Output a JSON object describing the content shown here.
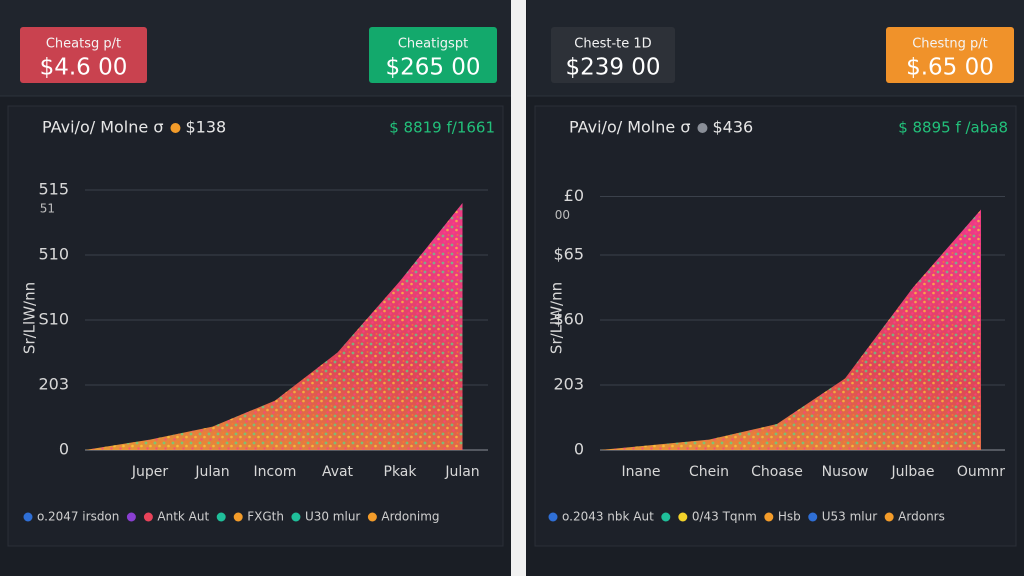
{
  "panels": [
    {
      "cards": [
        {
          "label": "Cheatsg p/t",
          "value": "$4.6 00",
          "color": "#c9424f"
        },
        {
          "label": "Cheatigspt",
          "value": "$265 00",
          "color": "#13a96c"
        }
      ],
      "summary": {
        "label": "PAvi/o/ Molne σ",
        "dot_color": "#f39c2a",
        "value": "$138",
        "right": "$ 8819 f/1661",
        "right_color": "#22c07a"
      }
    },
    {
      "cards": [
        {
          "label": "Chest-te 1D",
          "value": "$239 00",
          "color": "#2d3138"
        },
        {
          "label": "Chestng p/t",
          "value": "$.65 00",
          "color": "#f0922a"
        }
      ],
      "summary": {
        "label": "PAvi/o/ Molne σ",
        "dot_color": "#8a8f98",
        "value": "$436",
        "right": "$ 8895 f /aba8",
        "right_color": "#22c07a"
      }
    }
  ],
  "chart_data": [
    {
      "type": "area",
      "y_label": "Sr/LlW/nn",
      "categories": [
        "Juper",
        "Julan",
        "Incom",
        "Avat",
        "Pkak",
        "Julan"
      ],
      "values": [
        8,
        18,
        38,
        75,
        130,
        190
      ],
      "color": "#ef4a5a",
      "ylim": [
        0,
        225
      ],
      "yticks": [
        0,
        {
          "value": 50,
          "label": "203"
        },
        {
          "value": 100,
          "label": "S10"
        },
        {
          "value": 150,
          "label": "510"
        },
        {
          "value": 200,
          "label": "515"
        }
      ],
      "ytick_note": "51",
      "grid": true,
      "legend": [
        {
          "name": "o.2047 irsdon",
          "color": "#2f6fd6"
        },
        {
          "color": "#8a3fd1"
        },
        {
          "name": "Antk  Aut",
          "color": "#e8435a"
        },
        {
          "color": "#1fbf9a"
        },
        {
          "name": "FXGth",
          "color": "#f39c2a"
        },
        {
          "name": "U30 mlur",
          "color": "#1fbf9a"
        },
        {
          "name": "Ardonimg",
          "color": "#f39c2a"
        }
      ]
    },
    {
      "type": "area",
      "y_label": "Sr/LlW/nn",
      "categories": [
        "Inane",
        "Chein",
        "Choase",
        "Nusow",
        "Julbae",
        "Oumnr"
      ],
      "values": [
        3,
        8,
        20,
        55,
        125,
        185
      ],
      "color": "#ef4a5a",
      "ylim": [
        0,
        215
      ],
      "yticks": [
        0,
        {
          "value": 50,
          "label": "203"
        },
        {
          "value": 100,
          "label": "$60"
        },
        {
          "value": 150,
          "label": "$65"
        },
        {
          "value": 195,
          "label": "£0"
        }
      ],
      "ytick_note": "00",
      "grid": true,
      "legend": [
        {
          "name": "o.2043 nbk  Aut",
          "color": "#2f6fd6"
        },
        {
          "color": "#1fbf9a"
        },
        {
          "name": "0/43 Tqnm",
          "color": "#f2d22a"
        },
        {
          "name": "Hsb",
          "color": "#f39c2a"
        },
        {
          "name": "U53 mlur",
          "color": "#2f6fd6"
        },
        {
          "name": "Ardonrs",
          "color": "#f39c2a"
        }
      ]
    }
  ]
}
